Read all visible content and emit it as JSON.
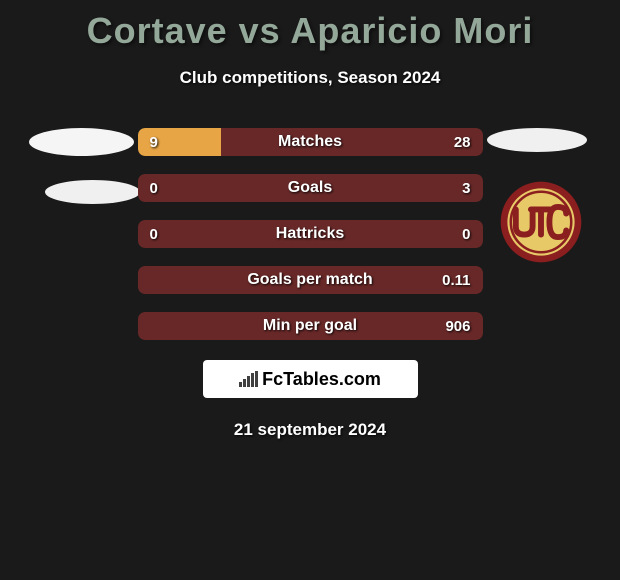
{
  "title": "Cortave vs Aparicio Mori",
  "subtitle": "Club competitions, Season 2024",
  "stats": [
    {
      "label": "Matches",
      "left_value": "9",
      "right_value": "28",
      "left_pct": 24.3,
      "left_color": "#e7a545",
      "right_color": "#682828"
    },
    {
      "label": "Goals",
      "left_value": "0",
      "right_value": "3",
      "left_pct": 0,
      "left_color": "#e7a545",
      "right_color": "#682828"
    },
    {
      "label": "Hattricks",
      "left_value": "0",
      "right_value": "0",
      "left_pct": 0,
      "left_color": "#e7a545",
      "right_color": "#682828"
    },
    {
      "label": "Goals per match",
      "left_value": "",
      "right_value": "0.11",
      "left_pct": 0,
      "left_color": "#e7a545",
      "right_color": "#682828"
    },
    {
      "label": "Min per goal",
      "left_value": "",
      "right_value": "906",
      "left_pct": 0,
      "left_color": "#e7a545",
      "right_color": "#682828"
    }
  ],
  "branding": {
    "site_name": "FcTables.com"
  },
  "date": "21 september 2024",
  "colors": {
    "background": "#1a1a1a",
    "title_color": "#94a89a",
    "text_color": "#ffffff",
    "bar_left": "#e7a545",
    "bar_right": "#682828"
  },
  "right_logo": {
    "ring_color": "#8b1e1e",
    "inner_color": "#e8c968",
    "letters": "UTC"
  }
}
